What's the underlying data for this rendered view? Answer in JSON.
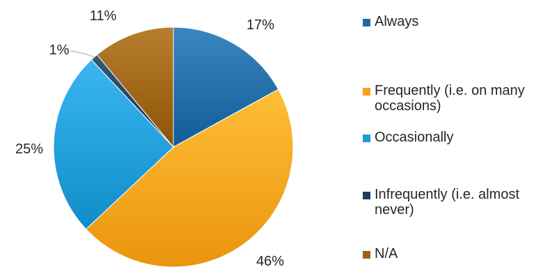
{
  "chart_data": {
    "type": "pie",
    "title": "",
    "slices": [
      {
        "label": "Always",
        "value": 17,
        "display": "17%",
        "color": "#1f6aa5"
      },
      {
        "label": "Frequently (i.e. on many occasions)",
        "value": 46,
        "display": "46%",
        "color": "#f9a21b"
      },
      {
        "label": "Occasionally",
        "value": 25,
        "display": "25%",
        "color": "#1e9ad6"
      },
      {
        "label": "Infrequently (i.e. almost never)",
        "value": 1,
        "display": "1%",
        "color": "#1c3f60"
      },
      {
        "label": "N/A",
        "value": 11,
        "display": "11%",
        "color": "#9a6212"
      }
    ],
    "legend_position": "right"
  }
}
